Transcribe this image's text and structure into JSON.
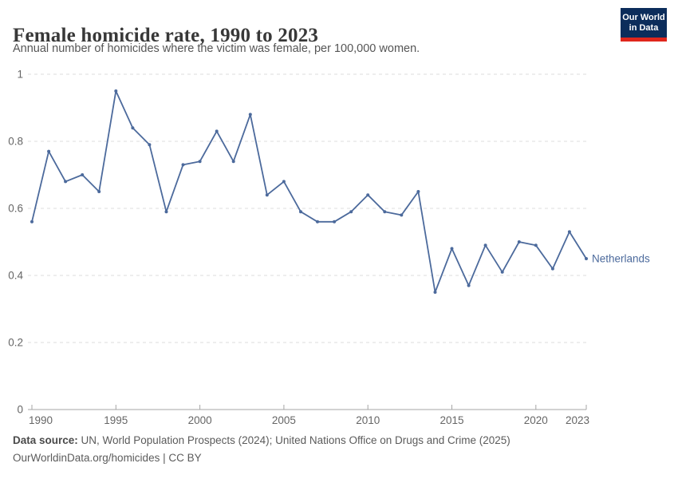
{
  "header": {
    "title": "Female homicide rate, 1990 to 2023",
    "subtitle": "Annual number of homicides where the victim was female, per 100,000 women.",
    "logo_line1": "Our World",
    "logo_line2": "in Data"
  },
  "chart_data": {
    "type": "line",
    "title": "Female homicide rate, 1990 to 2023",
    "xlabel": "",
    "ylabel": "",
    "xlim": [
      1990,
      2023
    ],
    "ylim": [
      0,
      1
    ],
    "x_ticks": [
      1990,
      1995,
      2000,
      2005,
      2010,
      2015,
      2020,
      2023
    ],
    "y_ticks": [
      0,
      0.2,
      0.4,
      0.6,
      0.8,
      1
    ],
    "grid": "horizontal-dashed",
    "legend_position": "end-of-line-label",
    "x": [
      1990,
      1991,
      1992,
      1993,
      1994,
      1995,
      1996,
      1997,
      1998,
      1999,
      2000,
      2001,
      2002,
      2003,
      2004,
      2005,
      2006,
      2007,
      2008,
      2009,
      2010,
      2011,
      2012,
      2013,
      2014,
      2015,
      2016,
      2017,
      2018,
      2019,
      2020,
      2021,
      2022,
      2023
    ],
    "series": [
      {
        "name": "Netherlands",
        "color": "#4C6A9C",
        "values": [
          0.56,
          0.77,
          0.68,
          0.7,
          0.65,
          0.95,
          0.84,
          0.79,
          0.59,
          0.73,
          0.74,
          0.83,
          0.74,
          0.88,
          0.64,
          0.68,
          0.59,
          0.56,
          0.56,
          0.59,
          0.64,
          0.59,
          0.58,
          0.65,
          0.35,
          0.48,
          0.37,
          0.49,
          0.41,
          0.5,
          0.49,
          0.42,
          0.53,
          0.45
        ]
      }
    ],
    "entity_label": "Netherlands"
  },
  "footer": {
    "source_label": "Data source:",
    "source_text": " UN, World Population Prospects (2024); United Nations Office on Drugs and Crime (2025)",
    "license_line": "OurWorldinData.org/homicides | CC BY"
  },
  "colors": {
    "line": "#4C6A9C",
    "gridline": "#dcdcdc",
    "axis": "#a5a5a5",
    "tick_label": "#666666",
    "logo_bg": "#0c2d5b",
    "logo_bar": "#e0261c"
  }
}
